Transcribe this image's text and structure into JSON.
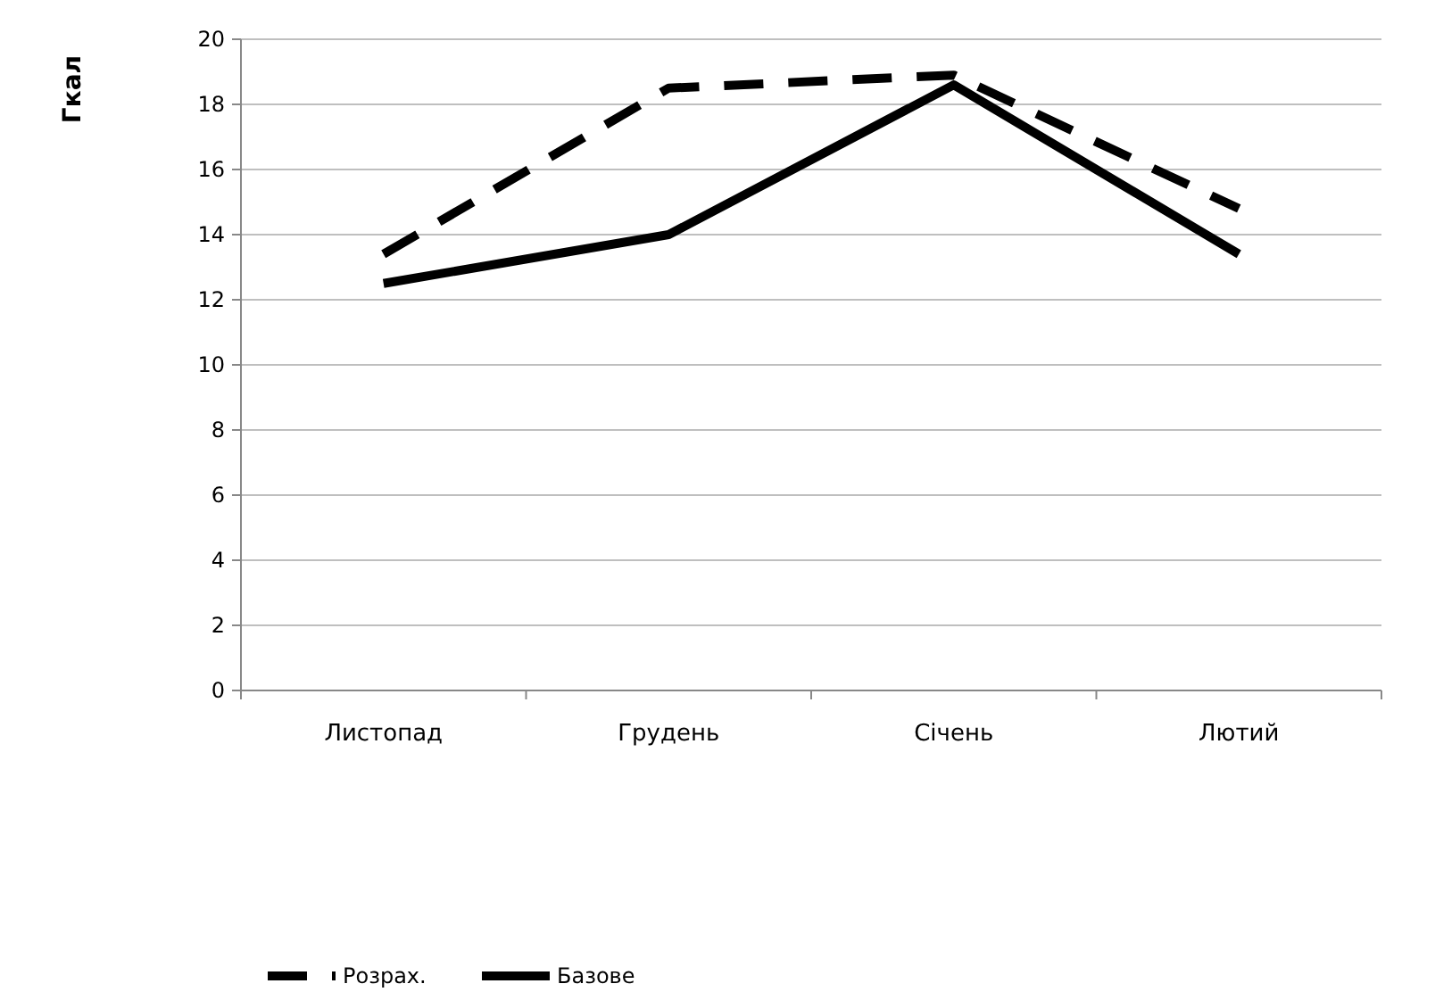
{
  "chart_data": {
    "type": "line",
    "ylabel": "Гкал",
    "categories": [
      "Листопад",
      "Грудень",
      "Січень",
      "Лютий"
    ],
    "series": [
      {
        "name": "Розрах.",
        "color": "#000000",
        "line_style": "dashed",
        "values": [
          13.4,
          18.5,
          18.9,
          14.8
        ]
      },
      {
        "name": "Базове",
        "color": "#000000",
        "line_style": "solid",
        "values": [
          12.5,
          14.0,
          18.6,
          13.4
        ]
      }
    ],
    "ylim": [
      0,
      20
    ],
    "yticks": [
      0,
      2,
      4,
      6,
      8,
      10,
      12,
      14,
      16,
      18,
      20
    ],
    "grid": "y",
    "legend": "bottom",
    "marker": "none"
  }
}
